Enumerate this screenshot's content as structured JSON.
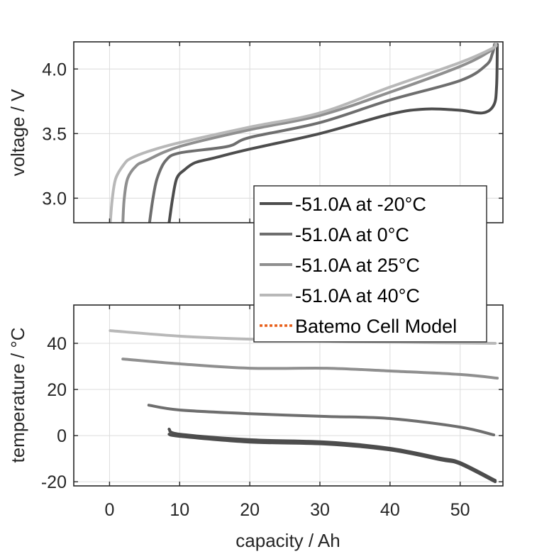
{
  "chart_data": [
    {
      "type": "line",
      "id": "voltage",
      "title": "",
      "xlabel": "",
      "ylabel": "voltage / V",
      "xlim": [
        -5.1,
        56.1
      ],
      "ylim": [
        2.81,
        4.21
      ],
      "xticks": [
        0,
        10,
        20,
        30,
        40,
        50
      ],
      "yticks": [
        3.0,
        3.5,
        4.0
      ],
      "ytick_labels": [
        "3.0",
        "3.5",
        "4.0"
      ],
      "grid": true,
      "series": [
        {
          "name": "-51.0A at -20°C",
          "color": "#4d4d4d",
          "x": [
            8.5,
            9.0,
            9.6,
            10.7,
            12.2,
            14.8,
            20,
            30,
            40,
            45.1,
            50,
            53.2,
            54.8,
            55.2,
            55.3
          ],
          "y": [
            2.81,
            3.0,
            3.155,
            3.22,
            3.275,
            3.31,
            3.38,
            3.5,
            3.65,
            3.69,
            3.68,
            3.66,
            3.72,
            3.87,
            4.19
          ]
        },
        {
          "name": "-51.0A at 0°C",
          "color": "#6e6e6e",
          "x": [
            5.7,
            6.2,
            6.8,
            8.0,
            10,
            16.8,
            20,
            30,
            40,
            50,
            53.7,
            54.6,
            54.9
          ],
          "y": [
            2.81,
            3.0,
            3.155,
            3.29,
            3.35,
            3.4,
            3.47,
            3.585,
            3.76,
            3.91,
            4.03,
            4.12,
            4.19
          ]
        },
        {
          "name": "-51.0A at 25°C",
          "color": "#8f8f8f",
          "x": [
            1.9,
            2.1,
            2.6,
            3.8,
            5.2,
            10,
            20,
            30,
            40,
            50,
            54.3,
            55.0
          ],
          "y": [
            2.81,
            3.0,
            3.155,
            3.25,
            3.29,
            3.4,
            3.53,
            3.64,
            3.82,
            4.02,
            4.14,
            4.19
          ]
        },
        {
          "name": "-51.0A at 40°C",
          "color": "#b8b8b8",
          "x": [
            0.1,
            0.4,
            0.9,
            2.1,
            3.1,
            5.7,
            10,
            20,
            30,
            40,
            50,
            54.6,
            55.1
          ],
          "y": [
            2.81,
            3.0,
            3.155,
            3.265,
            3.31,
            3.365,
            3.43,
            3.55,
            3.66,
            3.86,
            4.05,
            4.16,
            4.19
          ]
        }
      ]
    },
    {
      "type": "line",
      "id": "temperature",
      "title": "",
      "xlabel": "capacity / Ah",
      "ylabel": "temperature / °C",
      "xlim": [
        -5.1,
        56.1
      ],
      "ylim": [
        -21.8,
        56.6
      ],
      "xticks": [
        0,
        10,
        20,
        30,
        40,
        50
      ],
      "xtick_labels": [
        "0",
        "10",
        "20",
        "30",
        "40",
        "50"
      ],
      "yticks": [
        -20,
        0,
        20,
        40
      ],
      "ytick_labels": [
        "-20",
        "0",
        "20",
        "40"
      ],
      "grid": true,
      "series": [
        {
          "name": "-51.0A at -20°C (a)",
          "color": "#4d4d4d",
          "x": [
            8.5,
            10,
            20,
            31,
            40,
            47.2,
            50,
            55
          ],
          "y": [
            2.8,
            0.6,
            -1.8,
            -2.8,
            -5.5,
            -9.8,
            -11.7,
            -19.4
          ]
        },
        {
          "name": "-51.0A at -20°C (b)",
          "color": "#4d4d4d",
          "x": [
            8.5,
            10,
            20,
            31,
            40,
            47.2,
            50,
            55
          ],
          "y": [
            0.6,
            -0.3,
            -2.8,
            -3.7,
            -6.2,
            -10.5,
            -12.3,
            -20.0
          ]
        },
        {
          "name": "-51.0A at 0°C",
          "color": "#6e6e6e",
          "x": [
            5.6,
            10,
            20,
            31,
            40,
            50,
            54.8
          ],
          "y": [
            13.2,
            11.1,
            9.5,
            8.3,
            7.4,
            3.7,
            0.3
          ]
        },
        {
          "name": "-51.0A at 25°C",
          "color": "#8f8f8f",
          "x": [
            1.9,
            10,
            20,
            31,
            40,
            50,
            55.3
          ],
          "y": [
            33.2,
            31.1,
            29.2,
            29.2,
            28.0,
            26.5,
            24.9
          ]
        },
        {
          "name": "-51.0A at 40°C",
          "color": "#b8b8b8",
          "x": [
            0.1,
            10,
            20,
            32,
            45.1,
            55
          ],
          "y": [
            45.5,
            43.1,
            41.8,
            40.9,
            40.3,
            40.0
          ]
        }
      ]
    }
  ],
  "legend": {
    "placement": "center-right",
    "entries": [
      {
        "label": "-51.0A at -20°C",
        "color": "#4d4d4d",
        "style": "solid"
      },
      {
        "label": "-51.0A at 0°C",
        "color": "#6e6e6e",
        "style": "solid"
      },
      {
        "label": "-51.0A at 25°C",
        "color": "#8f8f8f",
        "style": "solid"
      },
      {
        "label": "-51.0A at 40°C",
        "color": "#b8b8b8",
        "style": "solid"
      },
      {
        "label": "Batemo Cell Model",
        "color": "#e8601c",
        "style": "dotted"
      }
    ]
  }
}
